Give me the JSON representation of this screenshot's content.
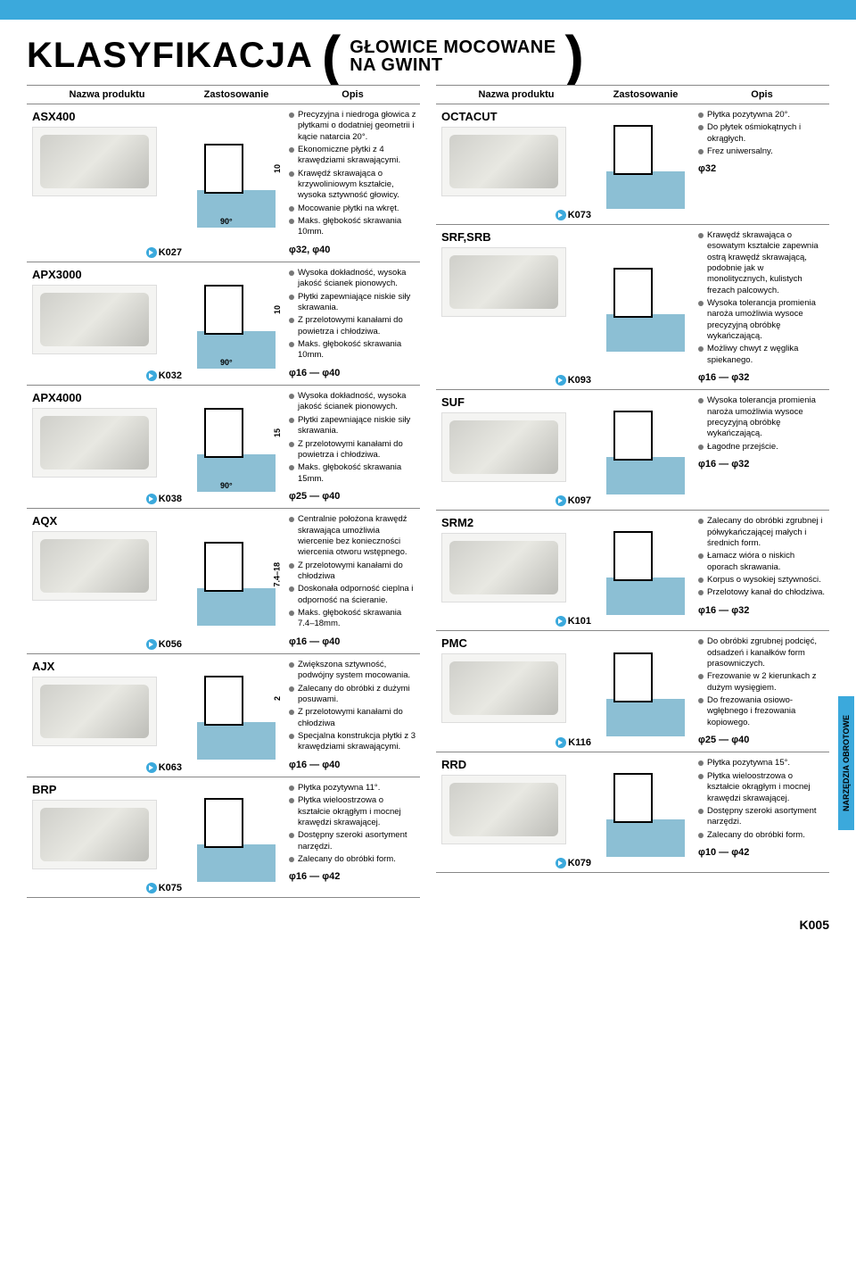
{
  "topbar_color": "#3ba9dc",
  "title": "KLASYFIKACJA",
  "subtitle_line1": "GŁOWICE MOCOWANE",
  "subtitle_line2": "NA GWINT",
  "headers": {
    "produkt": "Nazwa produktu",
    "zastosowanie": "Zastosowanie",
    "opis": "Opis"
  },
  "side_tab": "NARZĘDZIA OBROTOWE",
  "footer_page": "K005",
  "left": [
    {
      "name": "ASX400",
      "ref": "K027",
      "diag": {
        "depth": "10",
        "angle": "90°"
      },
      "bullets": [
        "Precyzyjna i niedroga głowica z płytkami o dodatniej geometrii i kącie natarcia 20°.",
        "Ekonomiczne płytki z 4 krawędziami skrawającymi.",
        "Krawędź skrawająca o krzywoliniowym kształcie, wysoka sztywność głowicy.",
        "Mocowanie płytki na wkręt.",
        "Maks. głębokość skrawania 10mm."
      ],
      "sizes": "φ32, φ40"
    },
    {
      "name": "APX3000",
      "ref": "K032",
      "diag": {
        "depth": "10",
        "angle": "90°"
      },
      "bullets": [
        "Wysoka dokładność, wysoka jakość ścianek pionowych.",
        "Płytki zapewniające niskie siły skrawania.",
        "Z przelotowymi kanałami do powietrza i chłodziwa.",
        "Maks. głębokość skrawania 10mm."
      ],
      "sizes": "φ16 — φ40"
    },
    {
      "name": "APX4000",
      "ref": "K038",
      "diag": {
        "depth": "15",
        "angle": "90°"
      },
      "bullets": [
        "Wysoka dokładność, wysoka jakość ścianek pionowych.",
        "Płytki zapewniające niskie siły skrawania.",
        "Z przelotowymi kanałami do powietrza i chłodziwa.",
        "Maks. głębokość skrawania 15mm."
      ],
      "sizes": "φ25 — φ40"
    },
    {
      "name": "AQX",
      "ref": "K056",
      "diag": {
        "depth": "7.4–18",
        "angle": ""
      },
      "bullets": [
        "Centralnie położona krawędź skrawająca umożliwia wiercenie bez konieczności wiercenia otworu wstępnego.",
        "Z przelotowymi kanałami do chłodziwa",
        "Doskonała odporność cieplna i odporność na ścieranie.",
        "Maks. głębokość skrawania 7.4–18mm."
      ],
      "sizes": "φ16 — φ40"
    },
    {
      "name": "AJX",
      "ref": "K063",
      "diag": {
        "depth": "2",
        "angle": ""
      },
      "bullets": [
        "Zwiększona sztywność, podwójny system mocowania.",
        "Zalecany do obróbki z dużymi posuwami.",
        "Z przelotowymi kanałami do chłodziwa",
        "Specjalna konstrukcja płytki z 3 krawędziami skrawającymi."
      ],
      "sizes": "φ16 — φ40"
    },
    {
      "name": "BRP",
      "ref": "K075",
      "diag": {
        "depth": "",
        "angle": ""
      },
      "bullets": [
        "Płytka pozytywna 11°.",
        "Płytka wieloostrzowa o kształcie okrągłym i mocnej krawędzi skrawającej.",
        "Dostępny szeroki asortyment narzędzi.",
        "Zalecany do obróbki form."
      ],
      "sizes": "φ16 — φ42"
    }
  ],
  "right": [
    {
      "name": "OCTACUT",
      "ref": "K073",
      "diag": {
        "depth": "",
        "angle": ""
      },
      "bullets": [
        "Płytka pozytywna 20°.",
        "Do płytek ośmiokątnych i okrągłych.",
        "Frez uniwersalny."
      ],
      "sizes": "φ32"
    },
    {
      "name": "SRF,SRB",
      "ref": "K093",
      "diag": {
        "depth": "",
        "angle": ""
      },
      "bullets": [
        "Krawędź skrawająca o esowatym kształcie zapewnia ostrą krawędź skrawającą, podobnie jak w monolitycznych, kulistych frezach palcowych.",
        "Wysoka tolerancja promienia naroża umożliwia wysoce precyzyjną obróbkę wykańczającą.",
        "Możliwy chwyt z węglika spiekanego."
      ],
      "sizes": "φ16 — φ32"
    },
    {
      "name": "SUF",
      "ref": "K097",
      "diag": {
        "depth": "",
        "angle": ""
      },
      "bullets": [
        "Wysoka tolerancja promienia naroża umożliwia wysoce precyzyjną obróbkę wykańczającą.",
        "Łagodne przejście."
      ],
      "sizes": "φ16 — φ32"
    },
    {
      "name": "SRM2",
      "ref": "K101",
      "diag": {
        "depth": "",
        "angle": ""
      },
      "bullets": [
        "Zalecany do obróbki zgrubnej i półwykańczającej małych i średnich form.",
        "Łamacz wióra o niskich oporach skrawania.",
        "Korpus o wysokiej sztywności.",
        "Przelotowy kanał do chłodziwa."
      ],
      "sizes": "φ16 — φ32"
    },
    {
      "name": "PMC",
      "ref": "K116",
      "diag": {
        "depth": "",
        "angle": ""
      },
      "bullets": [
        "Do obróbki zgrubnej podcięć, odsadzeń i kanałków form prasowniczych.",
        "Frezowanie w 2 kierunkach z dużym wysięgiem.",
        "Do frezowania osiowo-wgłębnego i frezowania kopiowego."
      ],
      "sizes": "φ25 — φ40"
    },
    {
      "name": "RRD",
      "ref": "K079",
      "diag": {
        "depth": "",
        "angle": ""
      },
      "bullets": [
        "Płytka pozytywna 15°.",
        "Płytka wieloostrzowa o kształcie okrągłym i mocnej krawędzi skrawającej.",
        "Dostępny szeroki asortyment narzędzi.",
        "Zalecany do obróbki form."
      ],
      "sizes": "φ10 — φ42"
    }
  ]
}
